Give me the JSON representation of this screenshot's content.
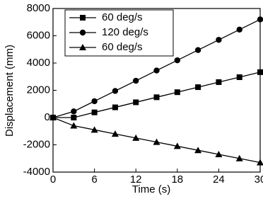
{
  "chart_data": {
    "type": "line",
    "xlabel": "Time (s)",
    "ylabel": "Displacement (mm)",
    "x": [
      0,
      3,
      6,
      9,
      12,
      15,
      18,
      21,
      24,
      27,
      30
    ],
    "series": [
      {
        "name": "60 deg/s",
        "color": "#000000",
        "marker": "square",
        "values": [
          0,
          0,
          380,
          750,
          1120,
          1490,
          1860,
          2230,
          2600,
          2960,
          3330
        ]
      },
      {
        "name": "120 deg/s",
        "color": "#000000",
        "marker": "circle",
        "values": [
          0,
          450,
          1200,
          1950,
          2700,
          3450,
          4200,
          4950,
          5700,
          6450,
          7200
        ]
      },
      {
        "name": "60 deg/s",
        "color": "#000000",
        "marker": "triangle",
        "values": [
          0,
          -600,
          -900,
          -1200,
          -1500,
          -1800,
          -2100,
          -2400,
          -2700,
          -3000,
          -3300
        ]
      }
    ],
    "xlim": [
      0,
      30
    ],
    "xticks": [
      0,
      6,
      12,
      18,
      24,
      30
    ],
    "ylim": [
      -4000,
      8000
    ],
    "yticks": [
      -4000,
      -2000,
      0,
      2000,
      4000,
      6000,
      8000
    ],
    "legend": "upper left"
  }
}
